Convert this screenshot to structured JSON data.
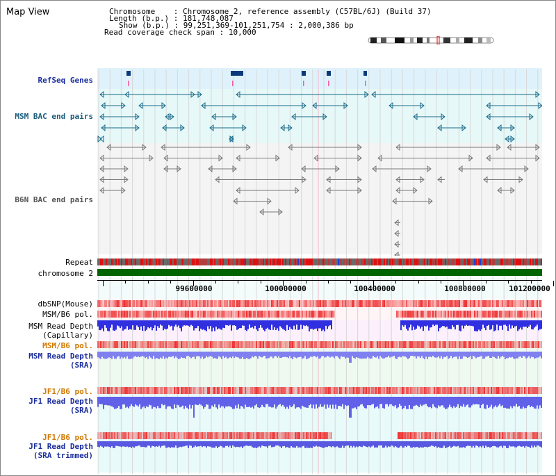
{
  "header": {
    "title": "Map View",
    "chromosome_key": "Chromosome",
    "chromosome_val": "Chromosome 2, reference assembly (C57BL/6J) (Build 37)",
    "length_key": "Length (b.p.)",
    "length_val": "181,748,087",
    "show_key": "Show (b.p.)",
    "show_val": "99,251,369-101,251,754 : 2,000,386 bp",
    "span_key": "Read coverage check span",
    "span_val": "10,000"
  },
  "tracks": {
    "refseq": "RefSeq Genes",
    "msm_bac": "MSM BAC end pairs",
    "b6n_bac": "B6N BAC end pairs",
    "repeat": "Repeat",
    "chromosome": "chromosome 2",
    "dbsnp": "dbSNP(Mouse)",
    "msm_b6_pol1": "MSM/B6 pol.",
    "msm_depth_cap_1": "MSM Read Depth",
    "msm_depth_cap_2": "(Capillary)",
    "msm_b6_pol2": "MSM/B6 pol.",
    "msm_depth_sra_1": "MSM Read Depth",
    "msm_depth_sra_2": "(SRA)",
    "jf1_b6_pol1": "JF1/B6 pol.",
    "jf1_depth_sra_1": "JF1 Read Depth",
    "jf1_depth_sra_2": "(SRA)",
    "jf1_b6_pol2": "JF1/B6 pol.",
    "jf1_depth_trim_1": "JF1 Read Depth",
    "jf1_depth_trim_2": "(SRA trimmed)"
  },
  "axis": {
    "ticks": [
      "99600000",
      "100000000",
      "100400000",
      "100800000",
      "101200000"
    ]
  },
  "colors": {
    "refseq_bg": "#dff2fb",
    "bac_bg": "#e6f8f8",
    "msm_feature": "#1a6a8a",
    "b6n_feature": "#777777",
    "chromosome": "#006400",
    "repeat_red": "#dd1111",
    "depth_blue": "#3030e0",
    "depth_light": "#8080f0",
    "pol_red": "#ee3333",
    "panel_pink": "#fbf0fb",
    "panel_mint": "#eefaf0",
    "panel_cyan": "#e8fafa"
  }
}
